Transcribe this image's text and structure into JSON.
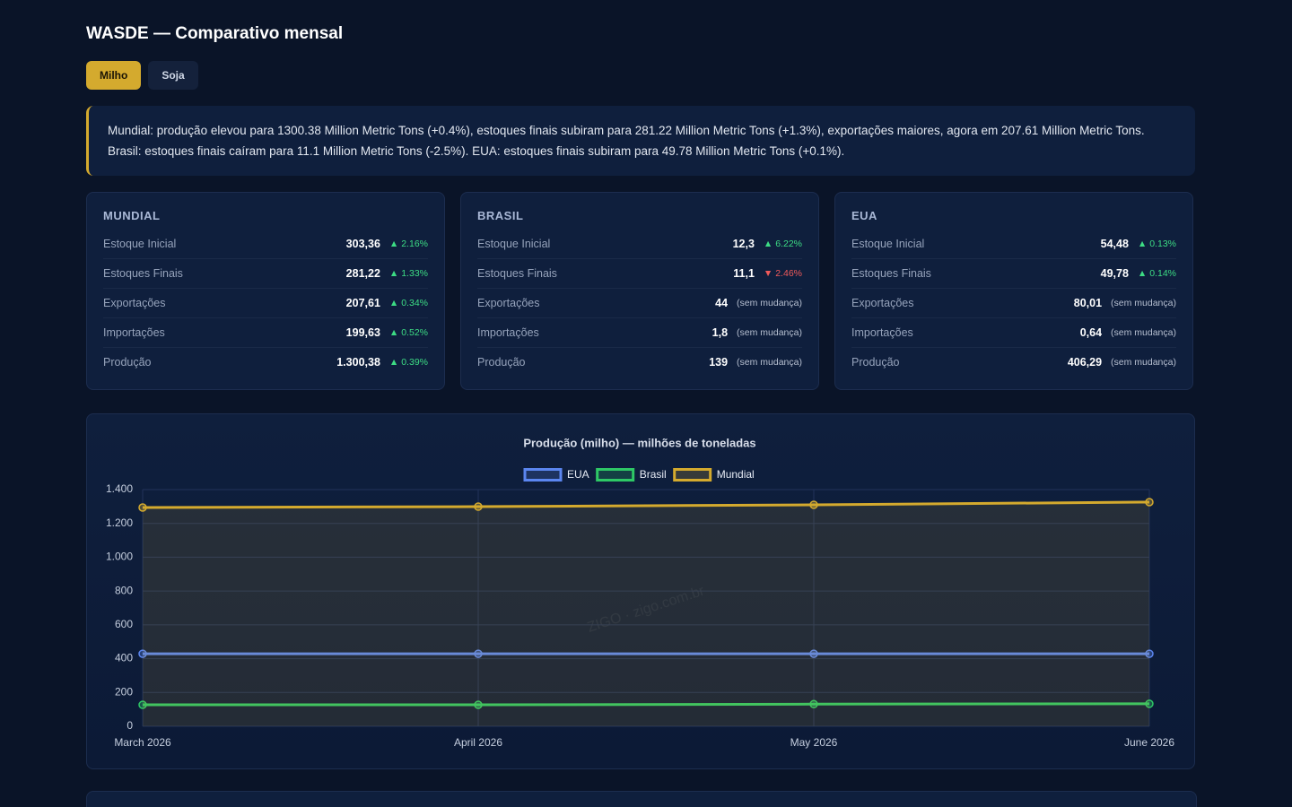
{
  "header": {
    "title": "WASDE — Comparativo mensal"
  },
  "tabs": [
    {
      "label": "Milho",
      "active": true
    },
    {
      "label": "Soja",
      "active": false
    }
  ],
  "summary": "Mundial: produção elevou para 1300.38 Million Metric Tons (+0.4%), estoques finais subiram para 281.22 Million Metric Tons (+1.3%), exportações maiores, agora em 207.61 Million Metric Tons. Brasil: estoques finais caíram para 11.1 Million Metric Tons (-2.5%). EUA: estoques finais subiram para 49.78 Million Metric Tons (+0.1%).",
  "cards": [
    {
      "title": "MUNDIAL",
      "rows": [
        {
          "label": "Estoque Inicial",
          "value": "303,36",
          "change": "2.16%",
          "direction": "up"
        },
        {
          "label": "Estoques Finais",
          "value": "281,22",
          "change": "1.33%",
          "direction": "up"
        },
        {
          "label": "Exportações",
          "value": "207,61",
          "change": "0.34%",
          "direction": "up"
        },
        {
          "label": "Importações",
          "value": "199,63",
          "change": "0.52%",
          "direction": "up"
        },
        {
          "label": "Produção",
          "value": "1.300,38",
          "change": "0.39%",
          "direction": "up"
        }
      ]
    },
    {
      "title": "BRASIL",
      "rows": [
        {
          "label": "Estoque Inicial",
          "value": "12,3",
          "change": "6.22%",
          "direction": "up"
        },
        {
          "label": "Estoques Finais",
          "value": "11,1",
          "change": "2.46%",
          "direction": "down"
        },
        {
          "label": "Exportações",
          "value": "44",
          "change": "(sem mudança)",
          "direction": "none"
        },
        {
          "label": "Importações",
          "value": "1,8",
          "change": "(sem mudança)",
          "direction": "none"
        },
        {
          "label": "Produção",
          "value": "139",
          "change": "(sem mudança)",
          "direction": "none"
        }
      ]
    },
    {
      "title": "EUA",
      "rows": [
        {
          "label": "Estoque Inicial",
          "value": "54,48",
          "change": "0.13%",
          "direction": "up"
        },
        {
          "label": "Estoques Finais",
          "value": "49,78",
          "change": "0.14%",
          "direction": "up"
        },
        {
          "label": "Exportações",
          "value": "80,01",
          "change": "(sem mudança)",
          "direction": "none"
        },
        {
          "label": "Importações",
          "value": "0,64",
          "change": "(sem mudança)",
          "direction": "none"
        },
        {
          "label": "Produção",
          "value": "406,29",
          "change": "(sem mudança)",
          "direction": "none"
        }
      ]
    }
  ],
  "chart_data": {
    "type": "line",
    "title": "Produção (milho) — milhões de toneladas",
    "watermark": "ZIGO · zigo.com.br",
    "categories": [
      "March 2026",
      "April 2026",
      "May 2026",
      "June 2026"
    ],
    "series": [
      {
        "name": "EUA",
        "color": "#5b86f0",
        "values": [
          429,
          429,
          429,
          429
        ]
      },
      {
        "name": "Brasil",
        "color": "#2ec866",
        "values": [
          127,
          127,
          131,
          133
        ]
      },
      {
        "name": "Mundial",
        "color": "#d4aa2e",
        "values": [
          1294,
          1299,
          1310,
          1326
        ],
        "fill": true
      }
    ],
    "ylim": [
      0,
      1400
    ],
    "yticks": [
      0,
      200,
      400,
      600,
      800,
      {
        "value": 1000,
        "label": "1.000"
      },
      {
        "value": 1200,
        "label": "1.200"
      },
      {
        "value": 1400,
        "label": "1.400"
      }
    ],
    "grid": true
  }
}
